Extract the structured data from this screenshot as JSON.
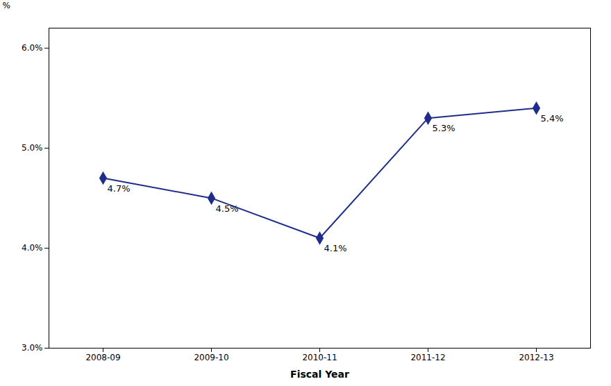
{
  "chart_data": {
    "type": "line",
    "categories": [
      "2008-09",
      "2009-10",
      "2010-11",
      "2011-12",
      "2012-13"
    ],
    "values": [
      4.7,
      4.5,
      4.1,
      5.3,
      5.4
    ],
    "value_labels": [
      "4.7%",
      "4.5%",
      "4.1%",
      "5.3%",
      "5.4%"
    ],
    "data_labels": true,
    "color": "#1F2D8A",
    "marker": "diamond",
    "xlabel": "Fiscal Year",
    "ylabel": "%",
    "ylim": [
      3.0,
      6.2
    ],
    "yticks": [
      {
        "value": 3.0,
        "label": "3.0%"
      },
      {
        "value": 4.0,
        "label": "4.0%"
      },
      {
        "value": 5.0,
        "label": "5.0%"
      },
      {
        "value": 6.0,
        "label": "6.0%"
      }
    ],
    "grid": false
  }
}
